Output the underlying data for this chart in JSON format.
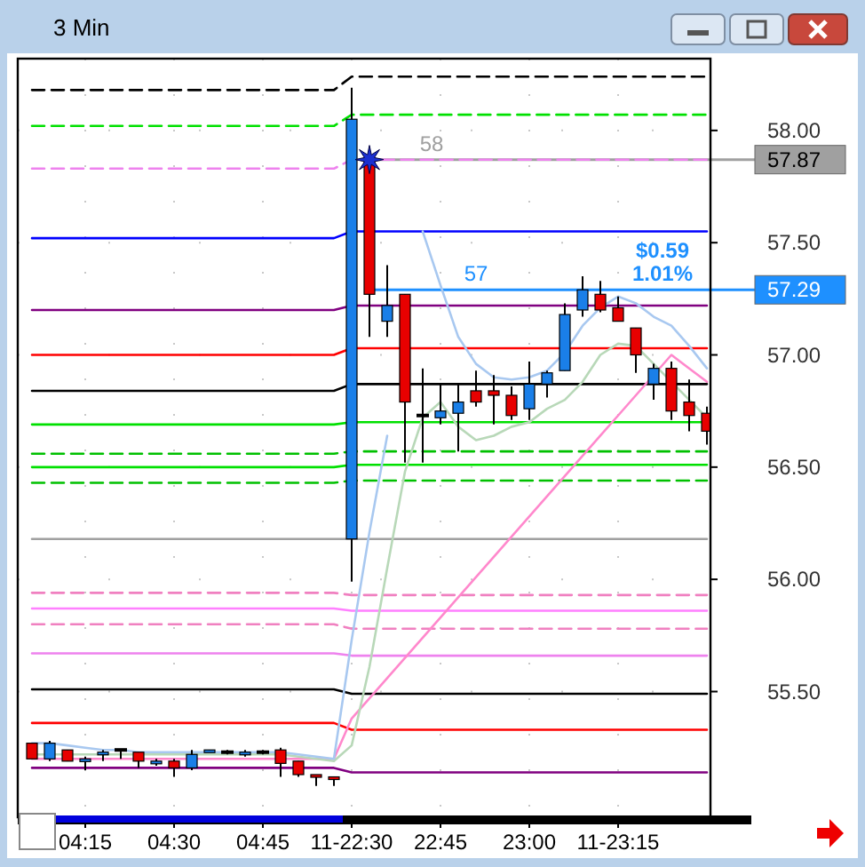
{
  "chart_data": {
    "type": "candlestick",
    "title": "3 Min",
    "categories": [
      null,
      null,
      null,
      "04:15",
      null,
      null,
      null,
      null,
      "04:30",
      null,
      null,
      null,
      null,
      "04:45",
      null,
      null,
      null,
      null,
      "11-22:30",
      null,
      null,
      null,
      null,
      "22:45",
      null,
      null,
      null,
      null,
      "23:00",
      null,
      null,
      null,
      null,
      "11-23:15",
      null,
      null,
      null,
      null,
      null
    ],
    "ohlc": [
      [
        55.27,
        55.27,
        55.2,
        55.2
      ],
      [
        55.2,
        55.28,
        55.19,
        55.27
      ],
      [
        55.24,
        55.24,
        55.19,
        55.19
      ],
      [
        55.19,
        55.21,
        55.15,
        55.2
      ],
      [
        55.22,
        55.24,
        55.19,
        55.23
      ],
      [
        55.24,
        55.24,
        55.2,
        55.24
      ],
      [
        55.23,
        55.23,
        55.16,
        55.19
      ],
      [
        55.18,
        55.2,
        55.17,
        55.19
      ],
      [
        55.19,
        55.2,
        55.12,
        55.16
      ],
      [
        55.16,
        55.24,
        55.15,
        55.22
      ],
      [
        55.23,
        55.24,
        55.23,
        55.24
      ],
      [
        55.23,
        55.24,
        55.22,
        55.23
      ],
      [
        55.22,
        55.24,
        55.21,
        55.23
      ],
      [
        55.23,
        55.24,
        55.22,
        55.23
      ],
      [
        55.24,
        55.25,
        55.12,
        55.18
      ],
      [
        55.19,
        55.19,
        55.12,
        55.13
      ],
      [
        55.13,
        55.13,
        55.08,
        55.12
      ],
      [
        55.12,
        55.12,
        55.08,
        55.11
      ],
      [
        56.18,
        58.19,
        55.99,
        58.05
      ],
      [
        57.87,
        57.88,
        57.08,
        57.27
      ],
      [
        57.15,
        57.4,
        57.08,
        57.22
      ],
      [
        57.27,
        57.27,
        56.52,
        56.79
      ],
      [
        56.73,
        56.94,
        56.52,
        56.73
      ],
      [
        56.72,
        56.87,
        56.69,
        56.75
      ],
      [
        56.74,
        56.87,
        56.57,
        56.79
      ],
      [
        56.84,
        56.93,
        56.77,
        56.79
      ],
      [
        56.84,
        56.91,
        56.69,
        56.82
      ],
      [
        56.82,
        56.86,
        56.71,
        56.73
      ],
      [
        56.76,
        56.97,
        56.71,
        56.87
      ],
      [
        56.87,
        56.93,
        56.81,
        56.92
      ],
      [
        56.93,
        57.23,
        56.93,
        57.18
      ],
      [
        57.2,
        57.35,
        57.17,
        57.29
      ],
      [
        57.27,
        57.33,
        57.19,
        57.2
      ],
      [
        57.21,
        57.26,
        57.15,
        57.15
      ],
      [
        57.12,
        57.12,
        56.92,
        57.0
      ],
      [
        56.87,
        56.96,
        56.8,
        56.94
      ],
      [
        56.94,
        56.97,
        56.71,
        56.75
      ],
      [
        56.79,
        56.89,
        56.66,
        56.73
      ],
      [
        56.74,
        56.77,
        56.6,
        56.66
      ]
    ],
    "series": [
      {
        "type": "line",
        "color": "#000000",
        "line_style": "dashed",
        "values": [
          58.18,
          58.18,
          58.18,
          58.18,
          58.18,
          58.18,
          58.18,
          58.18,
          58.18,
          58.18,
          58.18,
          58.18,
          58.18,
          58.18,
          58.18,
          58.18,
          58.18,
          58.18,
          58.24,
          58.24,
          58.24,
          58.24,
          58.24,
          58.24,
          58.24,
          58.24,
          58.24,
          58.24,
          58.24,
          58.24,
          58.24,
          58.24,
          58.24,
          58.24,
          58.24,
          58.24,
          58.24,
          58.24,
          58.24
        ]
      },
      {
        "type": "line",
        "color": "#00e000",
        "line_style": "dashed",
        "values": [
          58.02,
          58.02,
          58.02,
          58.02,
          58.02,
          58.02,
          58.02,
          58.02,
          58.02,
          58.02,
          58.02,
          58.02,
          58.02,
          58.02,
          58.02,
          58.02,
          58.02,
          58.02,
          58.07,
          58.07,
          58.07,
          58.07,
          58.07,
          58.07,
          58.07,
          58.07,
          58.07,
          58.07,
          58.07,
          58.07,
          58.07,
          58.07,
          58.07,
          58.07,
          58.07,
          58.07,
          58.07,
          58.07,
          58.07
        ]
      },
      {
        "type": "line",
        "color": "#ee82ee",
        "line_style": "dashed",
        "values": [
          57.83,
          57.83,
          57.83,
          57.83,
          57.83,
          57.83,
          57.83,
          57.83,
          57.83,
          57.83,
          57.83,
          57.83,
          57.83,
          57.83,
          57.83,
          57.83,
          57.83,
          57.83,
          57.87,
          57.87,
          57.87,
          57.87,
          57.87,
          57.87,
          57.87,
          57.87,
          57.87,
          57.87,
          57.87,
          57.87,
          57.87,
          57.87,
          57.87,
          57.87,
          57.87,
          57.87,
          57.87,
          57.87,
          57.87
        ]
      },
      {
        "type": "line",
        "color": "#0000ff",
        "line_style": "solid",
        "values": [
          57.52,
          57.52,
          57.52,
          57.52,
          57.52,
          57.52,
          57.52,
          57.52,
          57.52,
          57.52,
          57.52,
          57.52,
          57.52,
          57.52,
          57.52,
          57.52,
          57.52,
          57.52,
          57.55,
          57.55,
          57.55,
          57.55,
          57.55,
          57.55,
          57.55,
          57.55,
          57.55,
          57.55,
          57.55,
          57.55,
          57.55,
          57.55,
          57.55,
          57.55,
          57.55,
          57.55,
          57.55,
          57.55,
          57.55
        ]
      },
      {
        "type": "line",
        "color": "#800080",
        "line_style": "solid",
        "values": [
          57.2,
          57.2,
          57.2,
          57.2,
          57.2,
          57.2,
          57.2,
          57.2,
          57.2,
          57.2,
          57.2,
          57.2,
          57.2,
          57.2,
          57.2,
          57.2,
          57.2,
          57.2,
          57.22,
          57.22,
          57.22,
          57.22,
          57.22,
          57.22,
          57.22,
          57.22,
          57.22,
          57.22,
          57.22,
          57.22,
          57.22,
          57.22,
          57.22,
          57.22,
          57.22,
          57.22,
          57.22,
          57.22,
          57.22
        ]
      },
      {
        "type": "line",
        "color": "#ff0000",
        "line_style": "solid",
        "values": [
          57.0,
          57.0,
          57.0,
          57.0,
          57.0,
          57.0,
          57.0,
          57.0,
          57.0,
          57.0,
          57.0,
          57.0,
          57.0,
          57.0,
          57.0,
          57.0,
          57.0,
          57.0,
          57.03,
          57.03,
          57.03,
          57.03,
          57.03,
          57.03,
          57.03,
          57.03,
          57.03,
          57.03,
          57.03,
          57.03,
          57.03,
          57.03,
          57.03,
          57.03,
          57.03,
          57.03,
          57.03,
          57.03,
          57.03
        ]
      },
      {
        "type": "line",
        "color": "#000000",
        "line_style": "solid",
        "values": [
          56.84,
          56.84,
          56.84,
          56.84,
          56.84,
          56.84,
          56.84,
          56.84,
          56.84,
          56.84,
          56.84,
          56.84,
          56.84,
          56.84,
          56.84,
          56.84,
          56.84,
          56.84,
          56.87,
          56.87,
          56.87,
          56.87,
          56.87,
          56.87,
          56.87,
          56.87,
          56.87,
          56.87,
          56.87,
          56.87,
          56.87,
          56.87,
          56.87,
          56.87,
          56.87,
          56.87,
          56.87,
          56.87,
          56.87
        ]
      },
      {
        "type": "line",
        "color": "#00e000",
        "line_style": "solid",
        "values": [
          56.69,
          56.69,
          56.69,
          56.69,
          56.69,
          56.69,
          56.69,
          56.69,
          56.69,
          56.69,
          56.69,
          56.69,
          56.69,
          56.69,
          56.69,
          56.69,
          56.69,
          56.69,
          56.7,
          56.7,
          56.7,
          56.7,
          56.7,
          56.7,
          56.7,
          56.7,
          56.7,
          56.7,
          56.7,
          56.7,
          56.7,
          56.7,
          56.7,
          56.7,
          56.7,
          56.7,
          56.7,
          56.7,
          56.7
        ]
      },
      {
        "type": "line",
        "color": "#00c000",
        "line_style": "dashed",
        "values": [
          56.56,
          56.56,
          56.56,
          56.56,
          56.56,
          56.56,
          56.56,
          56.56,
          56.56,
          56.56,
          56.56,
          56.56,
          56.56,
          56.56,
          56.56,
          56.56,
          56.56,
          56.56,
          56.57,
          56.57,
          56.57,
          56.57,
          56.57,
          56.57,
          56.57,
          56.57,
          56.57,
          56.57,
          56.57,
          56.57,
          56.57,
          56.57,
          56.57,
          56.57,
          56.57,
          56.57,
          56.57,
          56.57,
          56.57
        ]
      },
      {
        "type": "line",
        "color": "#00e000",
        "line_style": "solid",
        "values": [
          56.5,
          56.5,
          56.5,
          56.5,
          56.5,
          56.5,
          56.5,
          56.5,
          56.5,
          56.5,
          56.5,
          56.5,
          56.5,
          56.5,
          56.5,
          56.5,
          56.5,
          56.5,
          56.51,
          56.51,
          56.51,
          56.51,
          56.51,
          56.51,
          56.51,
          56.51,
          56.51,
          56.51,
          56.51,
          56.51,
          56.51,
          56.51,
          56.51,
          56.51,
          56.51,
          56.51,
          56.51,
          56.51,
          56.51
        ]
      },
      {
        "type": "line",
        "color": "#00c000",
        "line_style": "dashed",
        "values": [
          56.43,
          56.43,
          56.43,
          56.43,
          56.43,
          56.43,
          56.43,
          56.43,
          56.43,
          56.43,
          56.43,
          56.43,
          56.43,
          56.43,
          56.43,
          56.43,
          56.43,
          56.43,
          56.44,
          56.44,
          56.44,
          56.44,
          56.44,
          56.44,
          56.44,
          56.44,
          56.44,
          56.44,
          56.44,
          56.44,
          56.44,
          56.44,
          56.44,
          56.44,
          56.44,
          56.44,
          56.44,
          56.44,
          56.44
        ]
      },
      {
        "type": "line",
        "color": "#a0a0a0",
        "line_style": "solid",
        "values": [
          56.18,
          56.18,
          56.18,
          56.18,
          56.18,
          56.18,
          56.18,
          56.18,
          56.18,
          56.18,
          56.18,
          56.18,
          56.18,
          56.18,
          56.18,
          56.18,
          56.18,
          56.18,
          56.18,
          56.18,
          56.18,
          56.18,
          56.18,
          56.18,
          56.18,
          56.18,
          56.18,
          56.18,
          56.18,
          56.18,
          56.18,
          56.18,
          56.18,
          56.18,
          56.18,
          56.18,
          56.18,
          56.18,
          56.18
        ]
      },
      {
        "type": "line",
        "color": "#f080c0",
        "line_style": "dashed",
        "values": [
          55.94,
          55.94,
          55.94,
          55.94,
          55.94,
          55.94,
          55.94,
          55.94,
          55.94,
          55.94,
          55.94,
          55.94,
          55.94,
          55.94,
          55.94,
          55.94,
          55.94,
          55.94,
          55.93,
          55.93,
          55.93,
          55.93,
          55.93,
          55.93,
          55.93,
          55.93,
          55.93,
          55.93,
          55.93,
          55.93,
          55.93,
          55.93,
          55.93,
          55.93,
          55.93,
          55.93,
          55.93,
          55.93,
          55.93
        ]
      },
      {
        "type": "line",
        "color": "#ff80ff",
        "line_style": "solid",
        "values": [
          55.87,
          55.87,
          55.87,
          55.87,
          55.87,
          55.87,
          55.87,
          55.87,
          55.87,
          55.87,
          55.87,
          55.87,
          55.87,
          55.87,
          55.87,
          55.87,
          55.87,
          55.87,
          55.86,
          55.86,
          55.86,
          55.86,
          55.86,
          55.86,
          55.86,
          55.86,
          55.86,
          55.86,
          55.86,
          55.86,
          55.86,
          55.86,
          55.86,
          55.86,
          55.86,
          55.86,
          55.86,
          55.86,
          55.86
        ]
      },
      {
        "type": "line",
        "color": "#f080c0",
        "line_style": "dashed",
        "values": [
          55.8,
          55.8,
          55.8,
          55.8,
          55.8,
          55.8,
          55.8,
          55.8,
          55.8,
          55.8,
          55.8,
          55.8,
          55.8,
          55.8,
          55.8,
          55.8,
          55.8,
          55.8,
          55.78,
          55.78,
          55.78,
          55.78,
          55.78,
          55.78,
          55.78,
          55.78,
          55.78,
          55.78,
          55.78,
          55.78,
          55.78,
          55.78,
          55.78,
          55.78,
          55.78,
          55.78,
          55.78,
          55.78,
          55.78
        ]
      },
      {
        "type": "line",
        "color": "#ee82ee",
        "line_style": "solid",
        "values": [
          55.67,
          55.67,
          55.67,
          55.67,
          55.67,
          55.67,
          55.67,
          55.67,
          55.67,
          55.67,
          55.67,
          55.67,
          55.67,
          55.67,
          55.67,
          55.67,
          55.67,
          55.67,
          55.66,
          55.66,
          55.66,
          55.66,
          55.66,
          55.66,
          55.66,
          55.66,
          55.66,
          55.66,
          55.66,
          55.66,
          55.66,
          55.66,
          55.66,
          55.66,
          55.66,
          55.66,
          55.66,
          55.66,
          55.66
        ]
      },
      {
        "type": "line",
        "color": "#000000",
        "line_style": "solid",
        "values": [
          55.51,
          55.51,
          55.51,
          55.51,
          55.51,
          55.51,
          55.51,
          55.51,
          55.51,
          55.51,
          55.51,
          55.51,
          55.51,
          55.51,
          55.51,
          55.51,
          55.51,
          55.51,
          55.49,
          55.49,
          55.49,
          55.49,
          55.49,
          55.49,
          55.49,
          55.49,
          55.49,
          55.49,
          55.49,
          55.49,
          55.49,
          55.49,
          55.49,
          55.49,
          55.49,
          55.49,
          55.49,
          55.49,
          55.49
        ]
      },
      {
        "type": "line",
        "color": "#ff0000",
        "line_style": "solid",
        "values": [
          55.36,
          55.36,
          55.36,
          55.36,
          55.36,
          55.36,
          55.36,
          55.36,
          55.36,
          55.36,
          55.36,
          55.36,
          55.36,
          55.36,
          55.36,
          55.36,
          55.36,
          55.36,
          55.33,
          55.33,
          55.33,
          55.33,
          55.33,
          55.33,
          55.33,
          55.33,
          55.33,
          55.33,
          55.33,
          55.33,
          55.33,
          55.33,
          55.33,
          55.33,
          55.33,
          55.33,
          55.33,
          55.33,
          55.33
        ]
      },
      {
        "type": "line",
        "color": "#800080",
        "line_style": "solid",
        "values": [
          55.16,
          55.16,
          55.16,
          55.16,
          55.16,
          55.16,
          55.16,
          55.16,
          55.16,
          55.16,
          55.16,
          55.16,
          55.16,
          55.16,
          55.16,
          55.16,
          55.16,
          55.16,
          55.14,
          55.14,
          55.14,
          55.14,
          55.14,
          55.14,
          55.14,
          55.14,
          55.14,
          55.14,
          55.14,
          55.14,
          55.14,
          55.14,
          55.14,
          55.14,
          55.14,
          55.14,
          55.14,
          55.14,
          55.14
        ]
      },
      {
        "type": "line",
        "color": "#ff88cc",
        "line_style": "solid",
        "values": [
          55.2,
          55.2,
          55.2,
          55.2,
          55.2,
          55.2,
          55.2,
          55.2,
          55.2,
          55.2,
          55.2,
          55.2,
          55.2,
          55.2,
          55.2,
          55.2,
          55.2,
          55.2,
          55.38,
          55.47,
          55.56,
          55.65,
          55.74,
          55.83,
          55.92,
          56.01,
          56.1,
          56.19,
          56.28,
          56.37,
          56.46,
          56.55,
          56.64,
          56.73,
          56.82,
          56.91,
          57.0,
          56.94,
          56.88
        ]
      },
      {
        "type": "line",
        "color": "#b8d8b8",
        "line_style": "solid",
        "values": [
          55.22,
          55.22,
          55.22,
          55.22,
          55.22,
          55.22,
          55.22,
          55.22,
          55.22,
          55.22,
          55.22,
          55.22,
          55.22,
          55.22,
          55.22,
          55.21,
          55.2,
          55.19,
          55.26,
          55.61,
          56.05,
          56.48,
          56.72,
          56.79,
          56.68,
          56.62,
          56.64,
          56.68,
          56.7,
          56.76,
          56.8,
          56.88,
          57.0,
          57.05,
          57.04,
          56.96,
          56.88,
          56.8,
          56.72
        ]
      },
      {
        "type": "line",
        "color": "#a8c8f0",
        "line_style": "solid",
        "values": [
          55.27,
          55.27,
          55.26,
          55.25,
          55.24,
          55.24,
          55.23,
          55.23,
          55.23,
          55.23,
          55.23,
          55.23,
          55.23,
          55.23,
          55.23,
          55.22,
          55.21,
          55.2,
          55.73,
          56.21,
          56.64,
          null,
          57.55,
          57.31,
          57.08,
          56.96,
          56.9,
          56.89,
          56.9,
          56.93,
          57.01,
          57.13,
          57.21,
          57.26,
          57.23,
          57.17,
          57.13,
          57.04,
          56.94
        ]
      }
    ],
    "ylim": [
      54.94,
      58.32
    ],
    "yticks": [
      {
        "value": 55.5,
        "label": "55.50"
      },
      {
        "value": 56,
        "label": "56.00"
      },
      {
        "value": 56.5,
        "label": "56.50"
      },
      {
        "value": 57,
        "label": "57.00"
      },
      {
        "value": 57.5,
        "label": "57.50"
      },
      {
        "value": 58,
        "label": "58.00"
      }
    ],
    "grid": true,
    "ref_lines": [
      {
        "axis": "y",
        "value": 57.87,
        "label": "57.87",
        "color": "#a0a0a0"
      },
      {
        "axis": "y",
        "value": 57.29,
        "label": "57.29",
        "color": "#1e90ff"
      }
    ],
    "annotations": [
      "58",
      "57",
      "$0.59",
      "1.01%"
    ]
  }
}
